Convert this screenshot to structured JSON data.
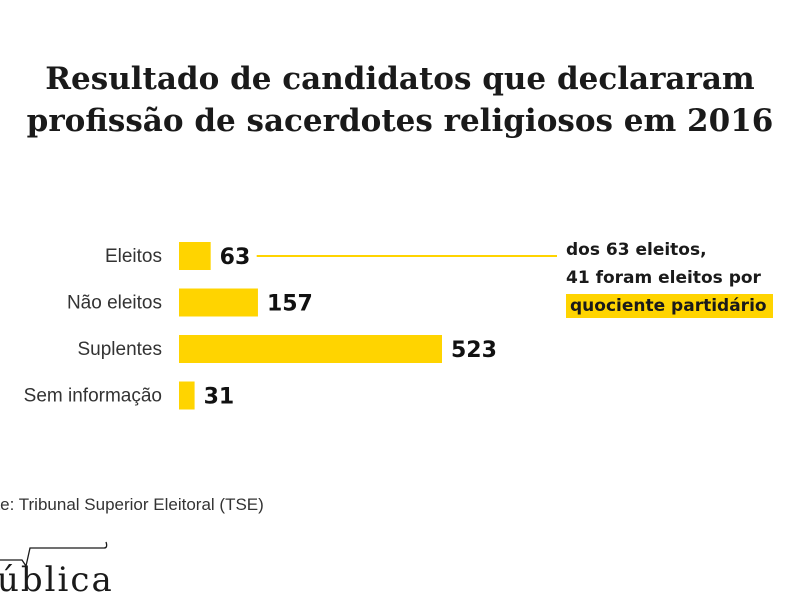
{
  "title": {
    "line1": "Resultado de candidatos que declararam",
    "line2": "profissão de sacerdotes religiosos em 2016"
  },
  "chart_data": {
    "type": "bar",
    "orientation": "horizontal",
    "categories": [
      "Eleitos",
      "Não eleitos",
      "Suplentes",
      "Sem informação"
    ],
    "values": [
      63,
      157,
      523,
      31
    ],
    "xlim": [
      0,
      523
    ],
    "grid": false,
    "bar_color": "#ffd400",
    "annotation": {
      "target_category": "Eleitos",
      "line1": "dos 63 eleitos,",
      "line2": "41 foram eleitos por",
      "highlight": "quociente partidário"
    }
  },
  "source": "nte: Tribunal Superior Eleitoral (TSE)",
  "logo": {
    "text": "ública"
  },
  "colors": {
    "accent": "#ffd400",
    "text": "#1a1a1a"
  }
}
